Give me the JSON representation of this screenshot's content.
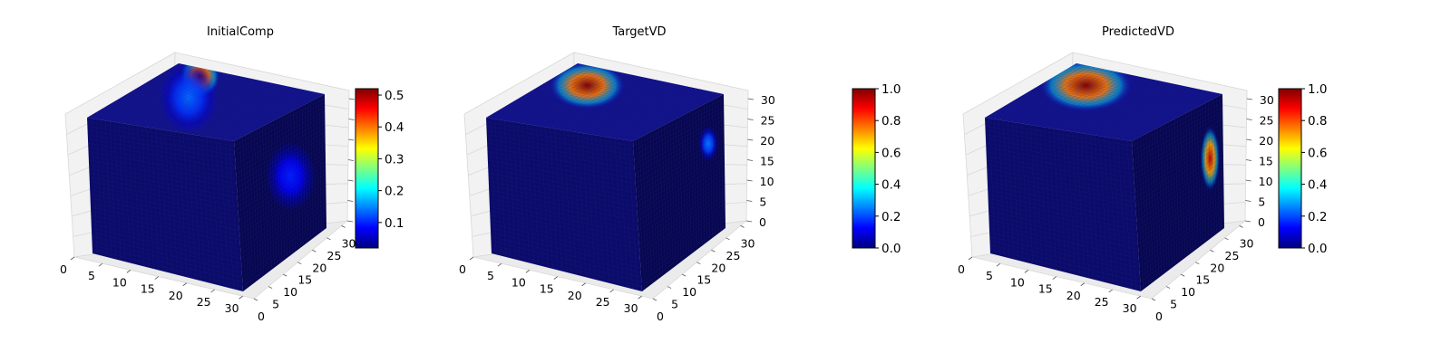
{
  "figure": {
    "colormap": "jet",
    "colors": {
      "jet": [
        "#00007f",
        "#0000ff",
        "#007fff",
        "#00ffff",
        "#7fff7f",
        "#ffff00",
        "#ff7f00",
        "#ff0000",
        "#7f0000"
      ],
      "cube_base": "#0a0a6e",
      "pane": "#f2f2f2",
      "pane_edge": "#d8d8d8"
    }
  },
  "chart_data": [
    {
      "type": "voxel3d",
      "title": "InitialComp",
      "x_ticks": [
        "0",
        "5",
        "10",
        "15",
        "20",
        "25",
        "30"
      ],
      "y_ticks": [
        "0",
        "5",
        "10",
        "15",
        "20",
        "25",
        "30"
      ],
      "z_ticks": [],
      "xlim": [
        0,
        32
      ],
      "ylim": [
        0,
        32
      ],
      "zlim": [
        0,
        32
      ],
      "colorbar": {
        "range": [
          0.02,
          0.52
        ],
        "ticks": [
          "0.1",
          "0.2",
          "0.3",
          "0.4",
          "0.5"
        ],
        "tick_values": [
          0.1,
          0.2,
          0.3,
          0.4,
          0.5
        ]
      },
      "hotspots": [
        {
          "face": "top",
          "u": 0.88,
          "v": 0.22,
          "ru": 0.26,
          "rv": 0.18,
          "value": 0.52
        },
        {
          "face": "top",
          "u": 0.55,
          "v": 0.35,
          "ru": 0.35,
          "rv": 0.3,
          "value": 0.12
        },
        {
          "face": "right",
          "u": 0.6,
          "v": 0.45,
          "ru": 0.3,
          "rv": 0.3,
          "value": 0.08
        }
      ]
    },
    {
      "type": "voxel3d",
      "title": "TargetVD",
      "x_ticks": [
        "0",
        "5",
        "10",
        "15",
        "20",
        "25",
        "30"
      ],
      "y_ticks": [
        "0",
        "5",
        "10",
        "15",
        "20",
        "25",
        "30"
      ],
      "z_ticks": [
        "0",
        "5",
        "10",
        "15",
        "20",
        "25",
        "30"
      ],
      "xlim": [
        0,
        32
      ],
      "ylim": [
        0,
        32
      ],
      "zlim": [
        0,
        32
      ],
      "colorbar": {
        "range": [
          0.0,
          1.0
        ],
        "ticks": [
          "0.0",
          "0.2",
          "0.4",
          "0.6",
          "0.8",
          "1.0"
        ],
        "tick_values": [
          0.0,
          0.2,
          0.4,
          0.6,
          0.8,
          1.0
        ]
      },
      "hotspots": [
        {
          "face": "top",
          "u": 0.72,
          "v": 0.24,
          "ru": 0.45,
          "rv": 0.2,
          "value": 1.0
        },
        {
          "face": "right",
          "u": 0.82,
          "v": 0.3,
          "ru": 0.12,
          "rv": 0.16,
          "value": 0.25
        }
      ]
    },
    {
      "type": "voxel3d",
      "title": "PredictedVD",
      "x_ticks": [
        "0",
        "5",
        "10",
        "15",
        "20",
        "25",
        "30"
      ],
      "y_ticks": [
        "0",
        "5",
        "10",
        "15",
        "20",
        "25",
        "30"
      ],
      "z_ticks": [
        "0",
        "5",
        "10",
        "15",
        "20",
        "25",
        "30"
      ],
      "xlim": [
        0,
        32
      ],
      "ylim": [
        0,
        32
      ],
      "zlim": [
        0,
        32
      ],
      "colorbar": {
        "range": [
          0.0,
          1.0
        ],
        "ticks": [
          "0.0",
          "0.2",
          "0.4",
          "0.6",
          "0.8",
          "1.0"
        ],
        "tick_values": [
          0.0,
          0.2,
          0.4,
          0.6,
          0.8,
          1.0
        ]
      },
      "hotspots": [
        {
          "face": "top",
          "u": 0.72,
          "v": 0.24,
          "ru": 0.55,
          "rv": 0.22,
          "value": 1.0
        },
        {
          "face": "right",
          "u": 0.85,
          "v": 0.42,
          "ru": 0.12,
          "rv": 0.3,
          "value": 0.95
        }
      ]
    }
  ]
}
